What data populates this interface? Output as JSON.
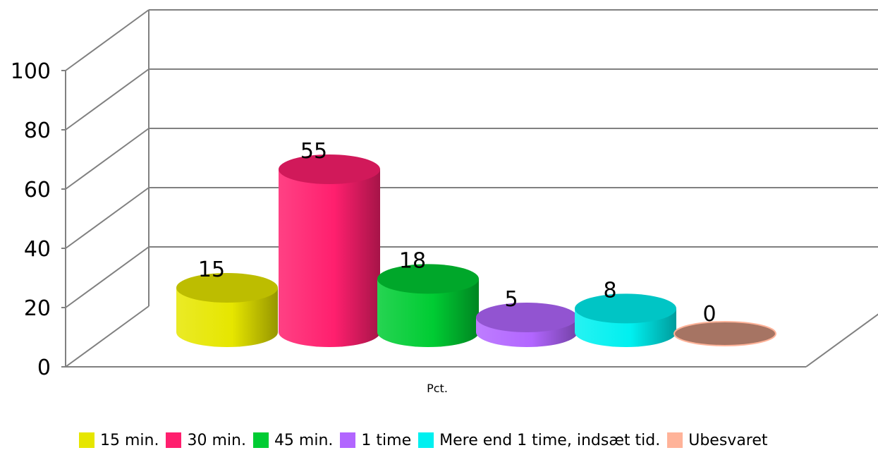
{
  "chart_data": {
    "type": "bar",
    "categories": [
      "Pct."
    ],
    "xlabel": "Pct.",
    "ylim": [
      0,
      100
    ],
    "yticks": [
      "0",
      "20",
      "40",
      "60",
      "80",
      "100"
    ],
    "grid": true,
    "legend_position": "bottom",
    "series": [
      {
        "name": "15 min.",
        "values": [
          15
        ],
        "label": "15",
        "color": "#e6e600"
      },
      {
        "name": "30 min.",
        "values": [
          55
        ],
        "label": "55",
        "color": "#ff1f6e"
      },
      {
        "name": "45 min.",
        "values": [
          18
        ],
        "label": "18",
        "color": "#00cc33"
      },
      {
        "name": "1 time",
        "values": [
          5
        ],
        "label": "5",
        "color": "#b266ff"
      },
      {
        "name": "Mere end 1 time, indsæt tid.",
        "values": [
          8
        ],
        "label": "8",
        "color": "#00f0f0"
      },
      {
        "name": "Ubesvaret",
        "values": [
          0
        ],
        "label": "0",
        "color": "#ffb399"
      }
    ]
  }
}
